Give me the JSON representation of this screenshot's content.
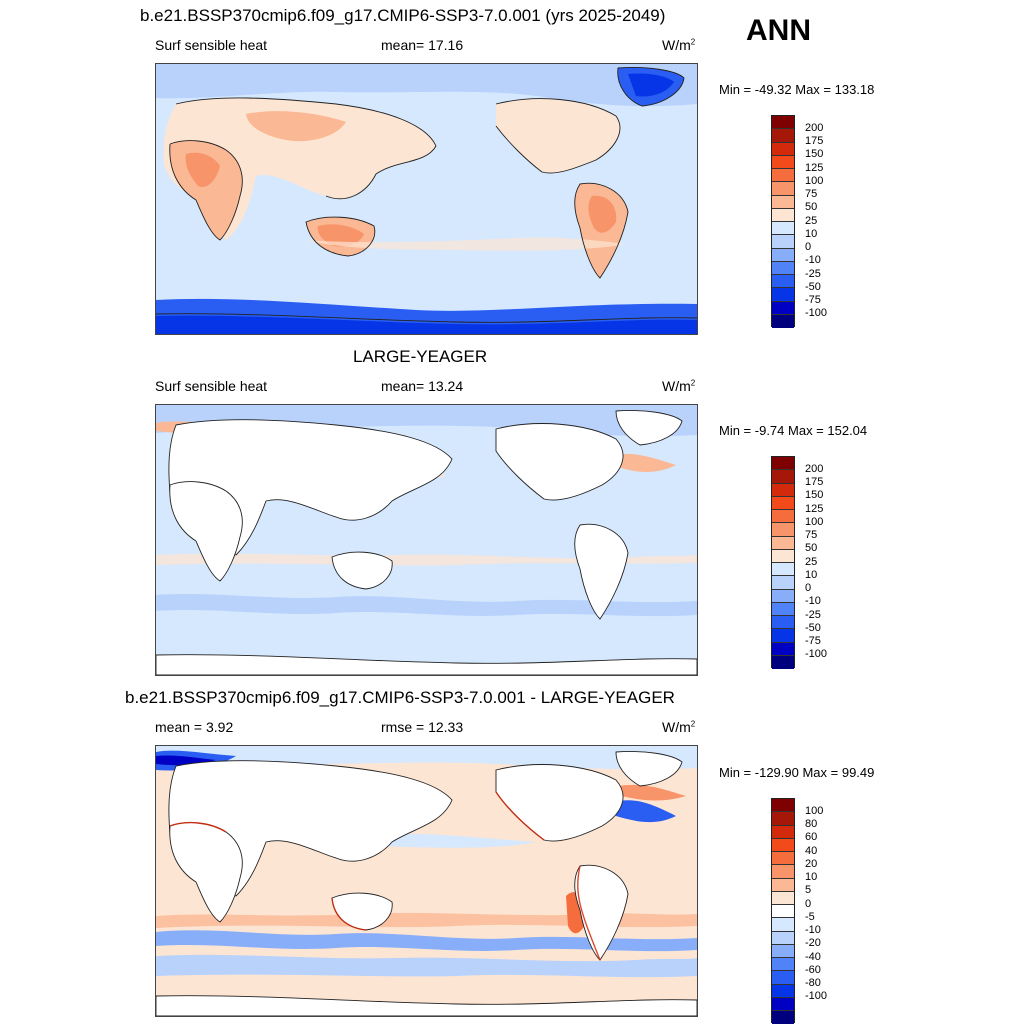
{
  "header": {
    "season": "ANN"
  },
  "colors": {
    "abs_scale": [
      "#00007f",
      "#0000c4",
      "#0535e6",
      "#2a5ef2",
      "#4f83f7",
      "#88aefa",
      "#b8d2fc",
      "#d6e8fd",
      "#fde5d4",
      "#fbb894",
      "#f8946a",
      "#f56c3d",
      "#f34a1b",
      "#d32a0b",
      "#a51707",
      "#7f0000"
    ],
    "diff_scale": [
      "#00007f",
      "#0000c4",
      "#0535e6",
      "#2a5ef2",
      "#4f83f7",
      "#88aefa",
      "#b8d2fc",
      "#d6e8fd",
      "#ffffff",
      "#fde5d4",
      "#fbb894",
      "#f8946a",
      "#f56c3d",
      "#f34a1b",
      "#d32a0b",
      "#a51707",
      "#7f0000"
    ]
  },
  "panels": [
    {
      "title": "b.e21.BSSP370cmip6.f09_g17.CMIP6-SSP3-7.0.001 (yrs 2025-2049)",
      "left_label": "Surf sensible heat",
      "mid_label": "mean=  17.16",
      "units": "W/m",
      "units_sup": "2",
      "minmax": "Min = -49.32 Max = 133.18",
      "levels": [
        "200",
        "175",
        "150",
        "125",
        "100",
        "75",
        "50",
        "25",
        "10",
        "0",
        "-10",
        "-25",
        "-50",
        "-75",
        "-100"
      ]
    },
    {
      "title": "LARGE-YEAGER",
      "left_label": "Surf sensible heat",
      "mid_label": "mean=  13.24",
      "units": "W/m",
      "units_sup": "2",
      "minmax": "Min =  -9.74 Max = 152.04",
      "levels": [
        "200",
        "175",
        "150",
        "125",
        "100",
        "75",
        "50",
        "25",
        "10",
        "0",
        "-10",
        "-25",
        "-50",
        "-75",
        "-100"
      ]
    },
    {
      "title": "b.e21.BSSP370cmip6.f09_g17.CMIP6-SSP3-7.0.001 - LARGE-YEAGER",
      "left_label": "mean =   3.92",
      "mid_label": "rmse =  12.33",
      "units": "W/m",
      "units_sup": "2",
      "minmax": "Min = -129.90 Max =  99.49",
      "levels": [
        "100",
        "80",
        "60",
        "40",
        "20",
        "10",
        "5",
        "0",
        "-5",
        "-10",
        "-20",
        "-40",
        "-60",
        "-80",
        "-100"
      ]
    }
  ]
}
